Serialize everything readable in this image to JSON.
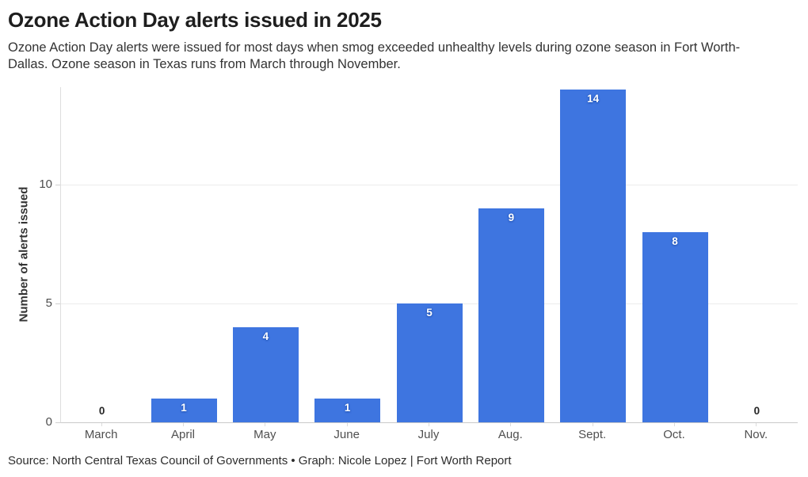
{
  "header": {
    "title": "Ozone Action Day alerts issued in 2025",
    "subtitle": "Ozone Action Day alerts were issued for most days when smog exceeded unhealthy levels during ozone season in Fort Worth-Dallas. Ozone season in Texas runs from March through November."
  },
  "chart_data": {
    "type": "bar",
    "categories": [
      "March",
      "April",
      "May",
      "June",
      "July",
      "Aug.",
      "Sept.",
      "Oct.",
      "Nov."
    ],
    "values": [
      0,
      1,
      4,
      1,
      5,
      9,
      14,
      8,
      0
    ],
    "title": "Ozone Action Day alerts issued in 2025",
    "xlabel": "",
    "ylabel": "Number of alerts issued",
    "ylim": [
      0,
      14.1
    ],
    "yticks": [
      0,
      5,
      10
    ],
    "grid": true,
    "legend": "none",
    "bar_color": "#3e75e0",
    "value_label_color": "#ffffff",
    "zero_label_color": "#262626"
  },
  "footer": {
    "source": "Source: North Central Texas Council of Governments • Graph: Nicole Lopez | Fort Worth Report"
  }
}
